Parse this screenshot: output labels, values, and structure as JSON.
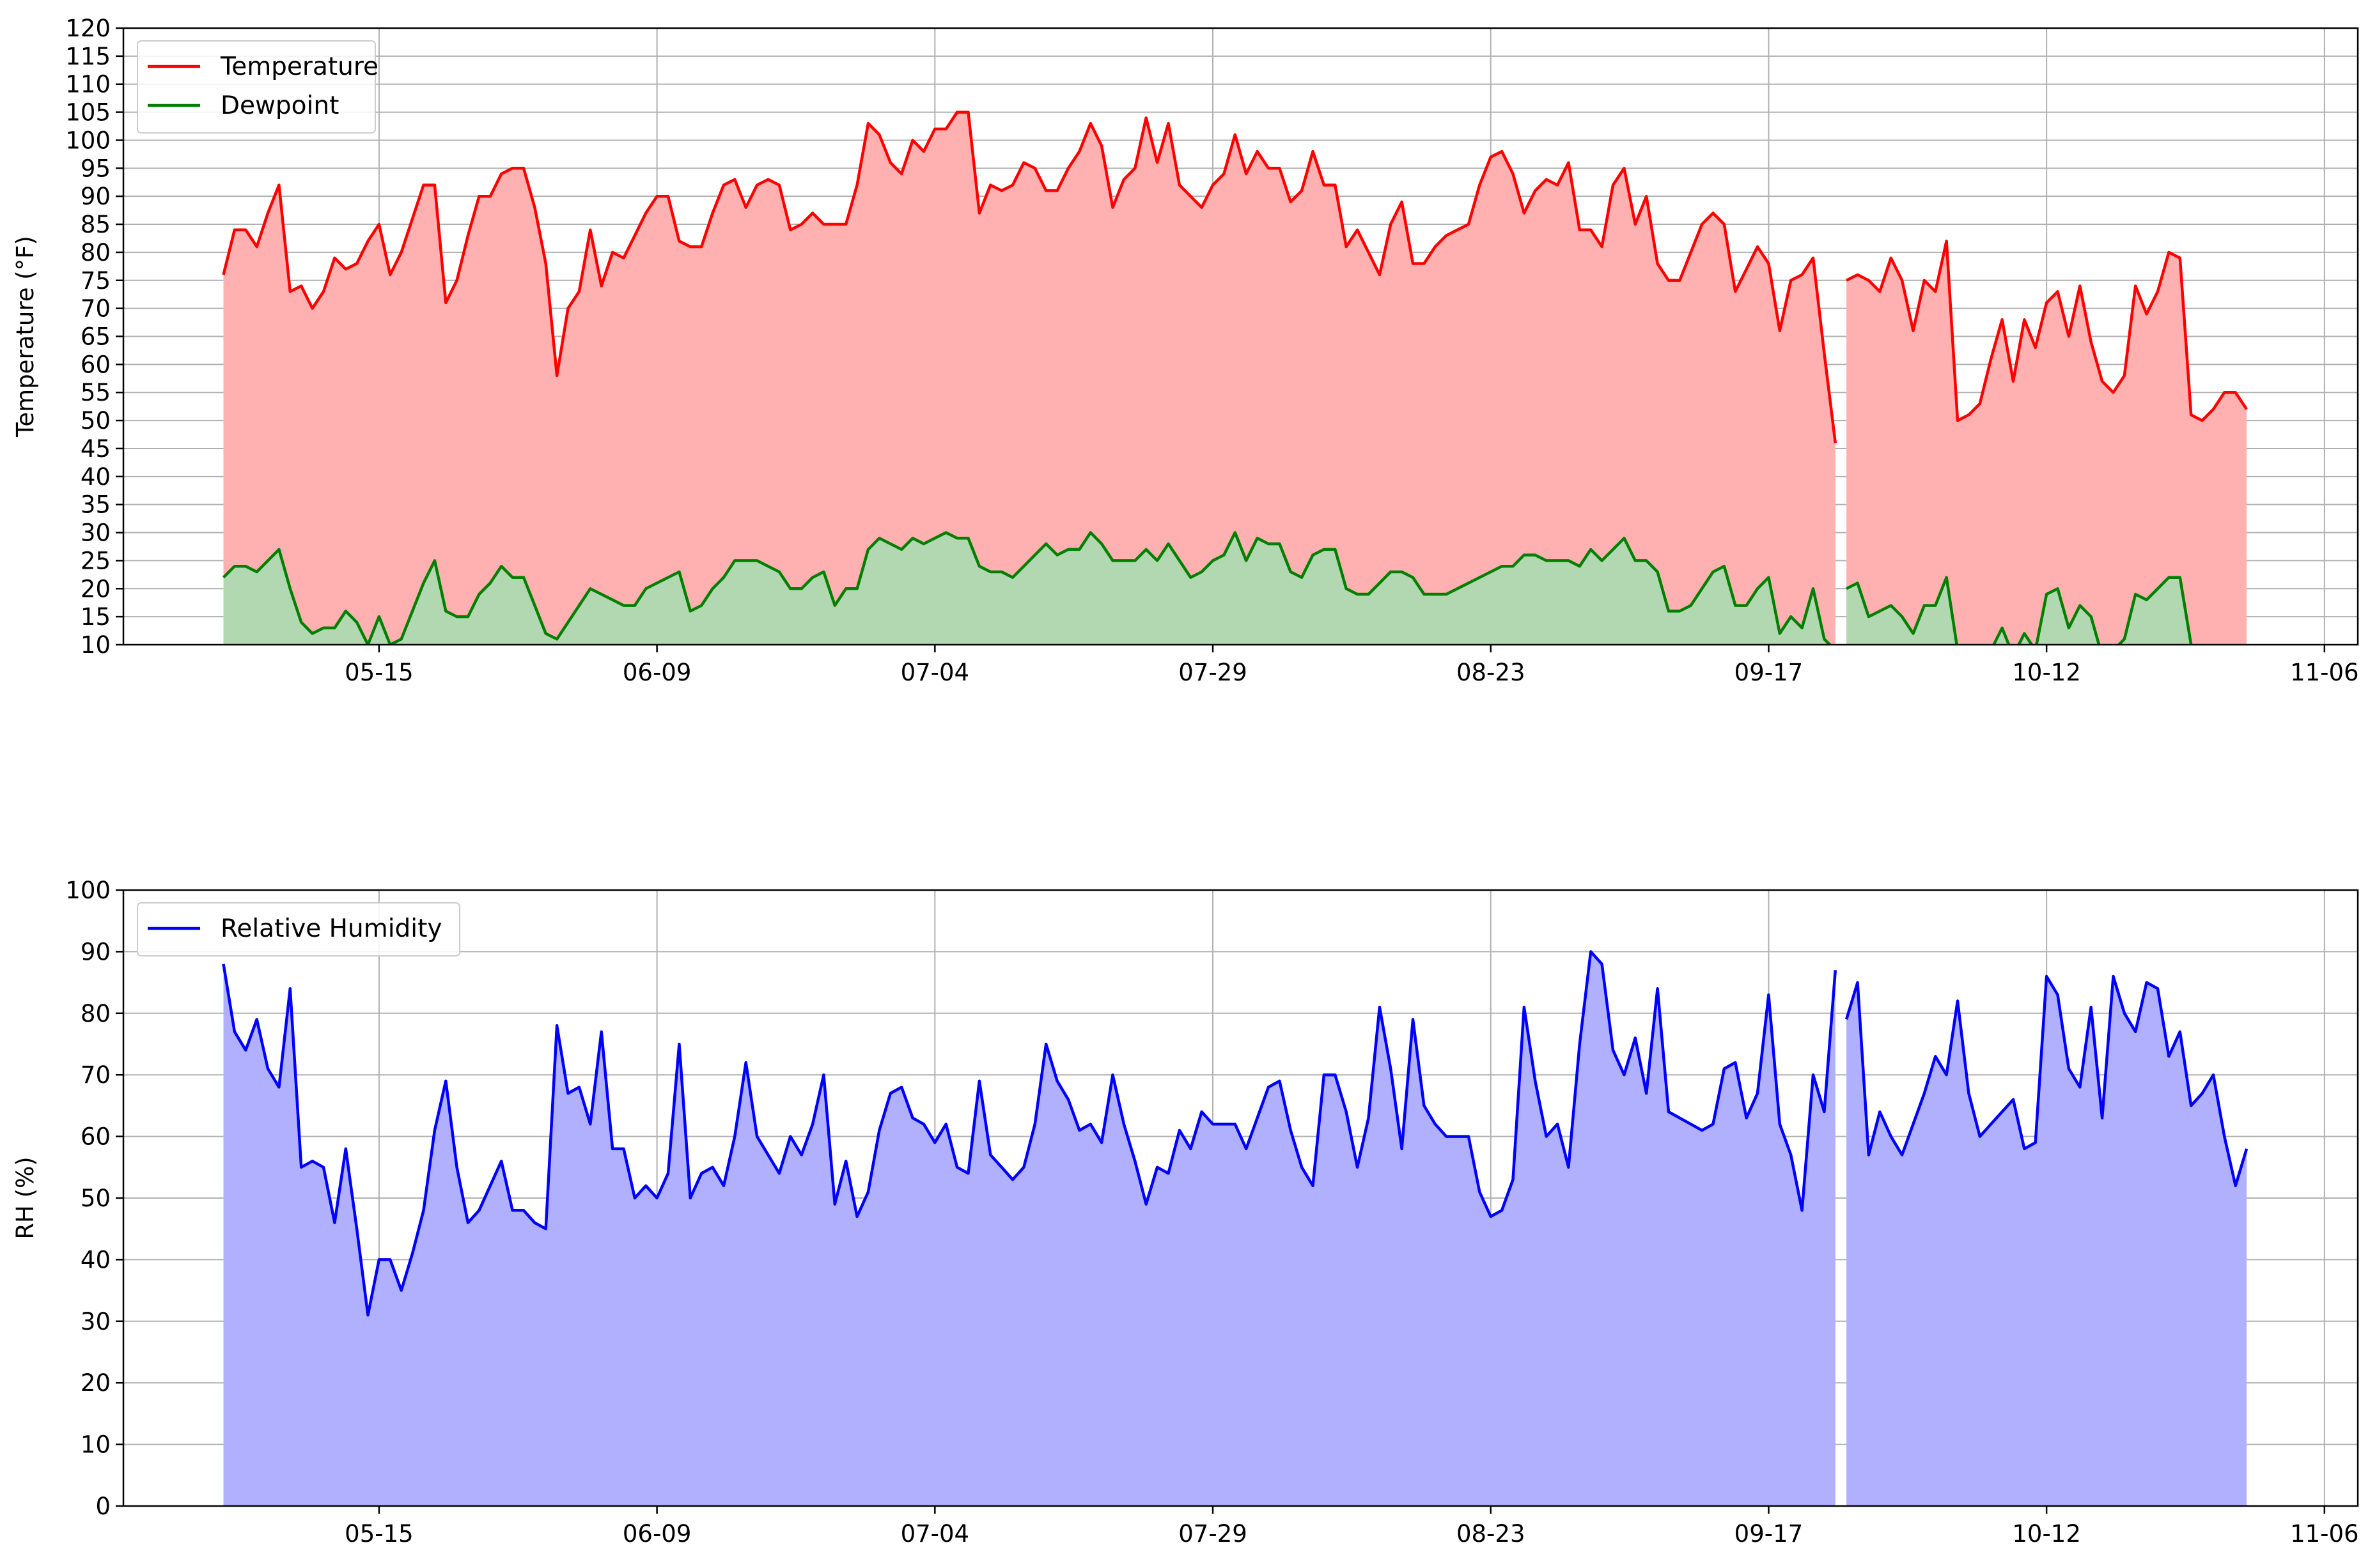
{
  "chart_data": [
    {
      "type": "area",
      "ylabel": "Temperature (°F)",
      "xlabel": "",
      "ylim": [
        10,
        120
      ],
      "yticks": [
        10,
        15,
        20,
        25,
        30,
        35,
        40,
        45,
        50,
        55,
        60,
        65,
        70,
        75,
        80,
        85,
        90,
        95,
        100,
        105,
        110,
        115,
        120
      ],
      "xticks": [
        "05-15",
        "06-09",
        "07-04",
        "07-29",
        "08-23",
        "09-17",
        "10-12",
        "11-06"
      ],
      "grid": true,
      "legend_position": "top-left",
      "series": [
        {
          "name": "Temperature",
          "color": "#ff0000",
          "fill_color": "#ffb0b0",
          "segments": [
            {
              "start": "2019-05-01",
              "values": [
                76,
                84,
                84,
                81,
                87,
                92,
                73,
                74,
                70,
                73,
                79,
                77,
                78,
                82,
                85,
                76,
                80,
                86,
                92,
                92,
                71,
                75,
                83,
                90,
                90,
                94,
                95,
                95,
                88,
                78,
                58,
                70,
                73,
                84,
                74,
                80,
                79,
                83,
                87,
                90,
                90,
                82,
                81,
                81,
                87,
                92,
                93,
                88,
                92,
                93,
                92,
                84,
                85,
                87,
                85,
                85,
                85,
                92,
                103,
                101,
                96,
                94,
                100,
                98,
                102,
                102,
                105,
                105,
                87,
                92,
                91,
                92,
                96,
                95,
                91,
                91,
                95,
                98,
                103,
                99,
                88,
                93,
                95,
                104,
                96,
                103,
                92,
                90,
                88,
                92,
                94,
                101,
                94,
                98,
                95,
                95,
                89,
                91,
                98,
                92,
                92,
                81,
                84,
                80,
                76,
                85,
                89,
                78,
                78,
                81,
                83,
                84,
                85,
                92,
                97,
                98,
                94,
                87,
                91,
                93,
                92,
                96,
                84,
                84,
                81,
                92,
                95,
                85,
                90,
                78,
                75,
                75,
                80,
                85,
                87,
                85,
                73,
                77,
                81,
                78,
                66,
                75,
                76,
                79,
                62,
                46
              ]
            },
            {
              "start": "2019-09-24",
              "values": [
                75,
                76,
                75,
                73,
                79,
                75,
                66,
                75,
                73,
                82,
                50,
                51,
                53,
                61,
                68,
                57,
                68,
                63,
                71,
                73,
                65,
                74,
                64,
                57,
                55,
                58,
                74,
                69,
                73,
                80,
                79,
                51,
                50,
                52,
                55,
                55,
                52
              ]
            }
          ]
        },
        {
          "name": "Dewpoint",
          "color": "#008000",
          "fill_color": "#b2d8b2",
          "segments": [
            {
              "start": "2019-05-01",
              "values": [
                22,
                24,
                24,
                23,
                25,
                27,
                20,
                14,
                12,
                13,
                13,
                16,
                14,
                10,
                15,
                10,
                11,
                16,
                21,
                25,
                16,
                15,
                15,
                19,
                21,
                24,
                22,
                22,
                17,
                12,
                11,
                14,
                17,
                20,
                19,
                18,
                17,
                17,
                20,
                21,
                22,
                23,
                16,
                17,
                20,
                22,
                25,
                25,
                25,
                24,
                23,
                20,
                20,
                22,
                23,
                17,
                20,
                20,
                27,
                29,
                28,
                27,
                29,
                28,
                29,
                30,
                29,
                29,
                24,
                23,
                23,
                22,
                24,
                26,
                28,
                26,
                27,
                27,
                30,
                28,
                25,
                25,
                25,
                27,
                25,
                28,
                25,
                22,
                23,
                25,
                26,
                30,
                25,
                29,
                28,
                28,
                23,
                22,
                26,
                27,
                27,
                20,
                19,
                19,
                21,
                23,
                23,
                22,
                19,
                19,
                19,
                20,
                21,
                22,
                23,
                24,
                24,
                26,
                26,
                25,
                25,
                25,
                24,
                27,
                25,
                27,
                29,
                25,
                25,
                23,
                16,
                16,
                17,
                20,
                23,
                24,
                17,
                17,
                20,
                22,
                12,
                15,
                13,
                20,
                11,
                9
              ]
            },
            {
              "start": "2019-09-24",
              "values": [
                20,
                21,
                15,
                16,
                17,
                15,
                12,
                17,
                17,
                22,
                9,
                9,
                9,
                9,
                13,
                8,
                12,
                9,
                19,
                20,
                13,
                17,
                15,
                8,
                9,
                11,
                19,
                18,
                20,
                22,
                22,
                10,
                9,
                9,
                9,
                9,
                9
              ]
            }
          ]
        }
      ]
    },
    {
      "type": "area",
      "ylabel": "RH (%)",
      "xlabel": "",
      "ylim": [
        0,
        100
      ],
      "yticks": [
        0,
        10,
        20,
        30,
        40,
        50,
        60,
        70,
        80,
        90,
        100
      ],
      "xticks": [
        "05-15",
        "06-09",
        "07-04",
        "07-29",
        "08-23",
        "09-17",
        "10-12",
        "11-06"
      ],
      "grid": true,
      "legend_position": "top-left",
      "series": [
        {
          "name": "Relative Humidity",
          "color": "#0000ff",
          "fill_color": "#b0b0ff",
          "segments": [
            {
              "start": "2019-05-01",
              "values": [
                88,
                77,
                74,
                79,
                71,
                68,
                84,
                55,
                56,
                55,
                46,
                58,
                45,
                31,
                40,
                40,
                35,
                41,
                48,
                61,
                69,
                55,
                46,
                48,
                52,
                56,
                48,
                48,
                46,
                45,
                78,
                67,
                68,
                62,
                77,
                58,
                58,
                50,
                52,
                50,
                54,
                75,
                50,
                54,
                55,
                52,
                60,
                72,
                60,
                57,
                54,
                60,
                57,
                62,
                70,
                49,
                56,
                47,
                51,
                61,
                67,
                68,
                63,
                62,
                59,
                62,
                55,
                54,
                69,
                57,
                55,
                53,
                55,
                62,
                75,
                69,
                66,
                61,
                62,
                59,
                70,
                62,
                56,
                49,
                55,
                54,
                61,
                58,
                64,
                62,
                62,
                62,
                58,
                63,
                68,
                69,
                61,
                55,
                52,
                70,
                70,
                64,
                55,
                63,
                81,
                71,
                58,
                79,
                65,
                62,
                60,
                60,
                60,
                51,
                47,
                48,
                53,
                81,
                69,
                60,
                62,
                55,
                75,
                90,
                88,
                74,
                70,
                76,
                67,
                84,
                64,
                63,
                62,
                61,
                62,
                71,
                72,
                63,
                67,
                83,
                62,
                57,
                48,
                70,
                64,
                87
              ]
            },
            {
              "start": "2019-09-24",
              "values": [
                79,
                85,
                57,
                64,
                60,
                57,
                62,
                67,
                73,
                70,
                82,
                67,
                60,
                62,
                64,
                66,
                58,
                59,
                86,
                83,
                71,
                68,
                81,
                63,
                86,
                80,
                77,
                85,
                84,
                73,
                77,
                65,
                67,
                70,
                60,
                52,
                58
              ]
            }
          ]
        }
      ]
    }
  ]
}
